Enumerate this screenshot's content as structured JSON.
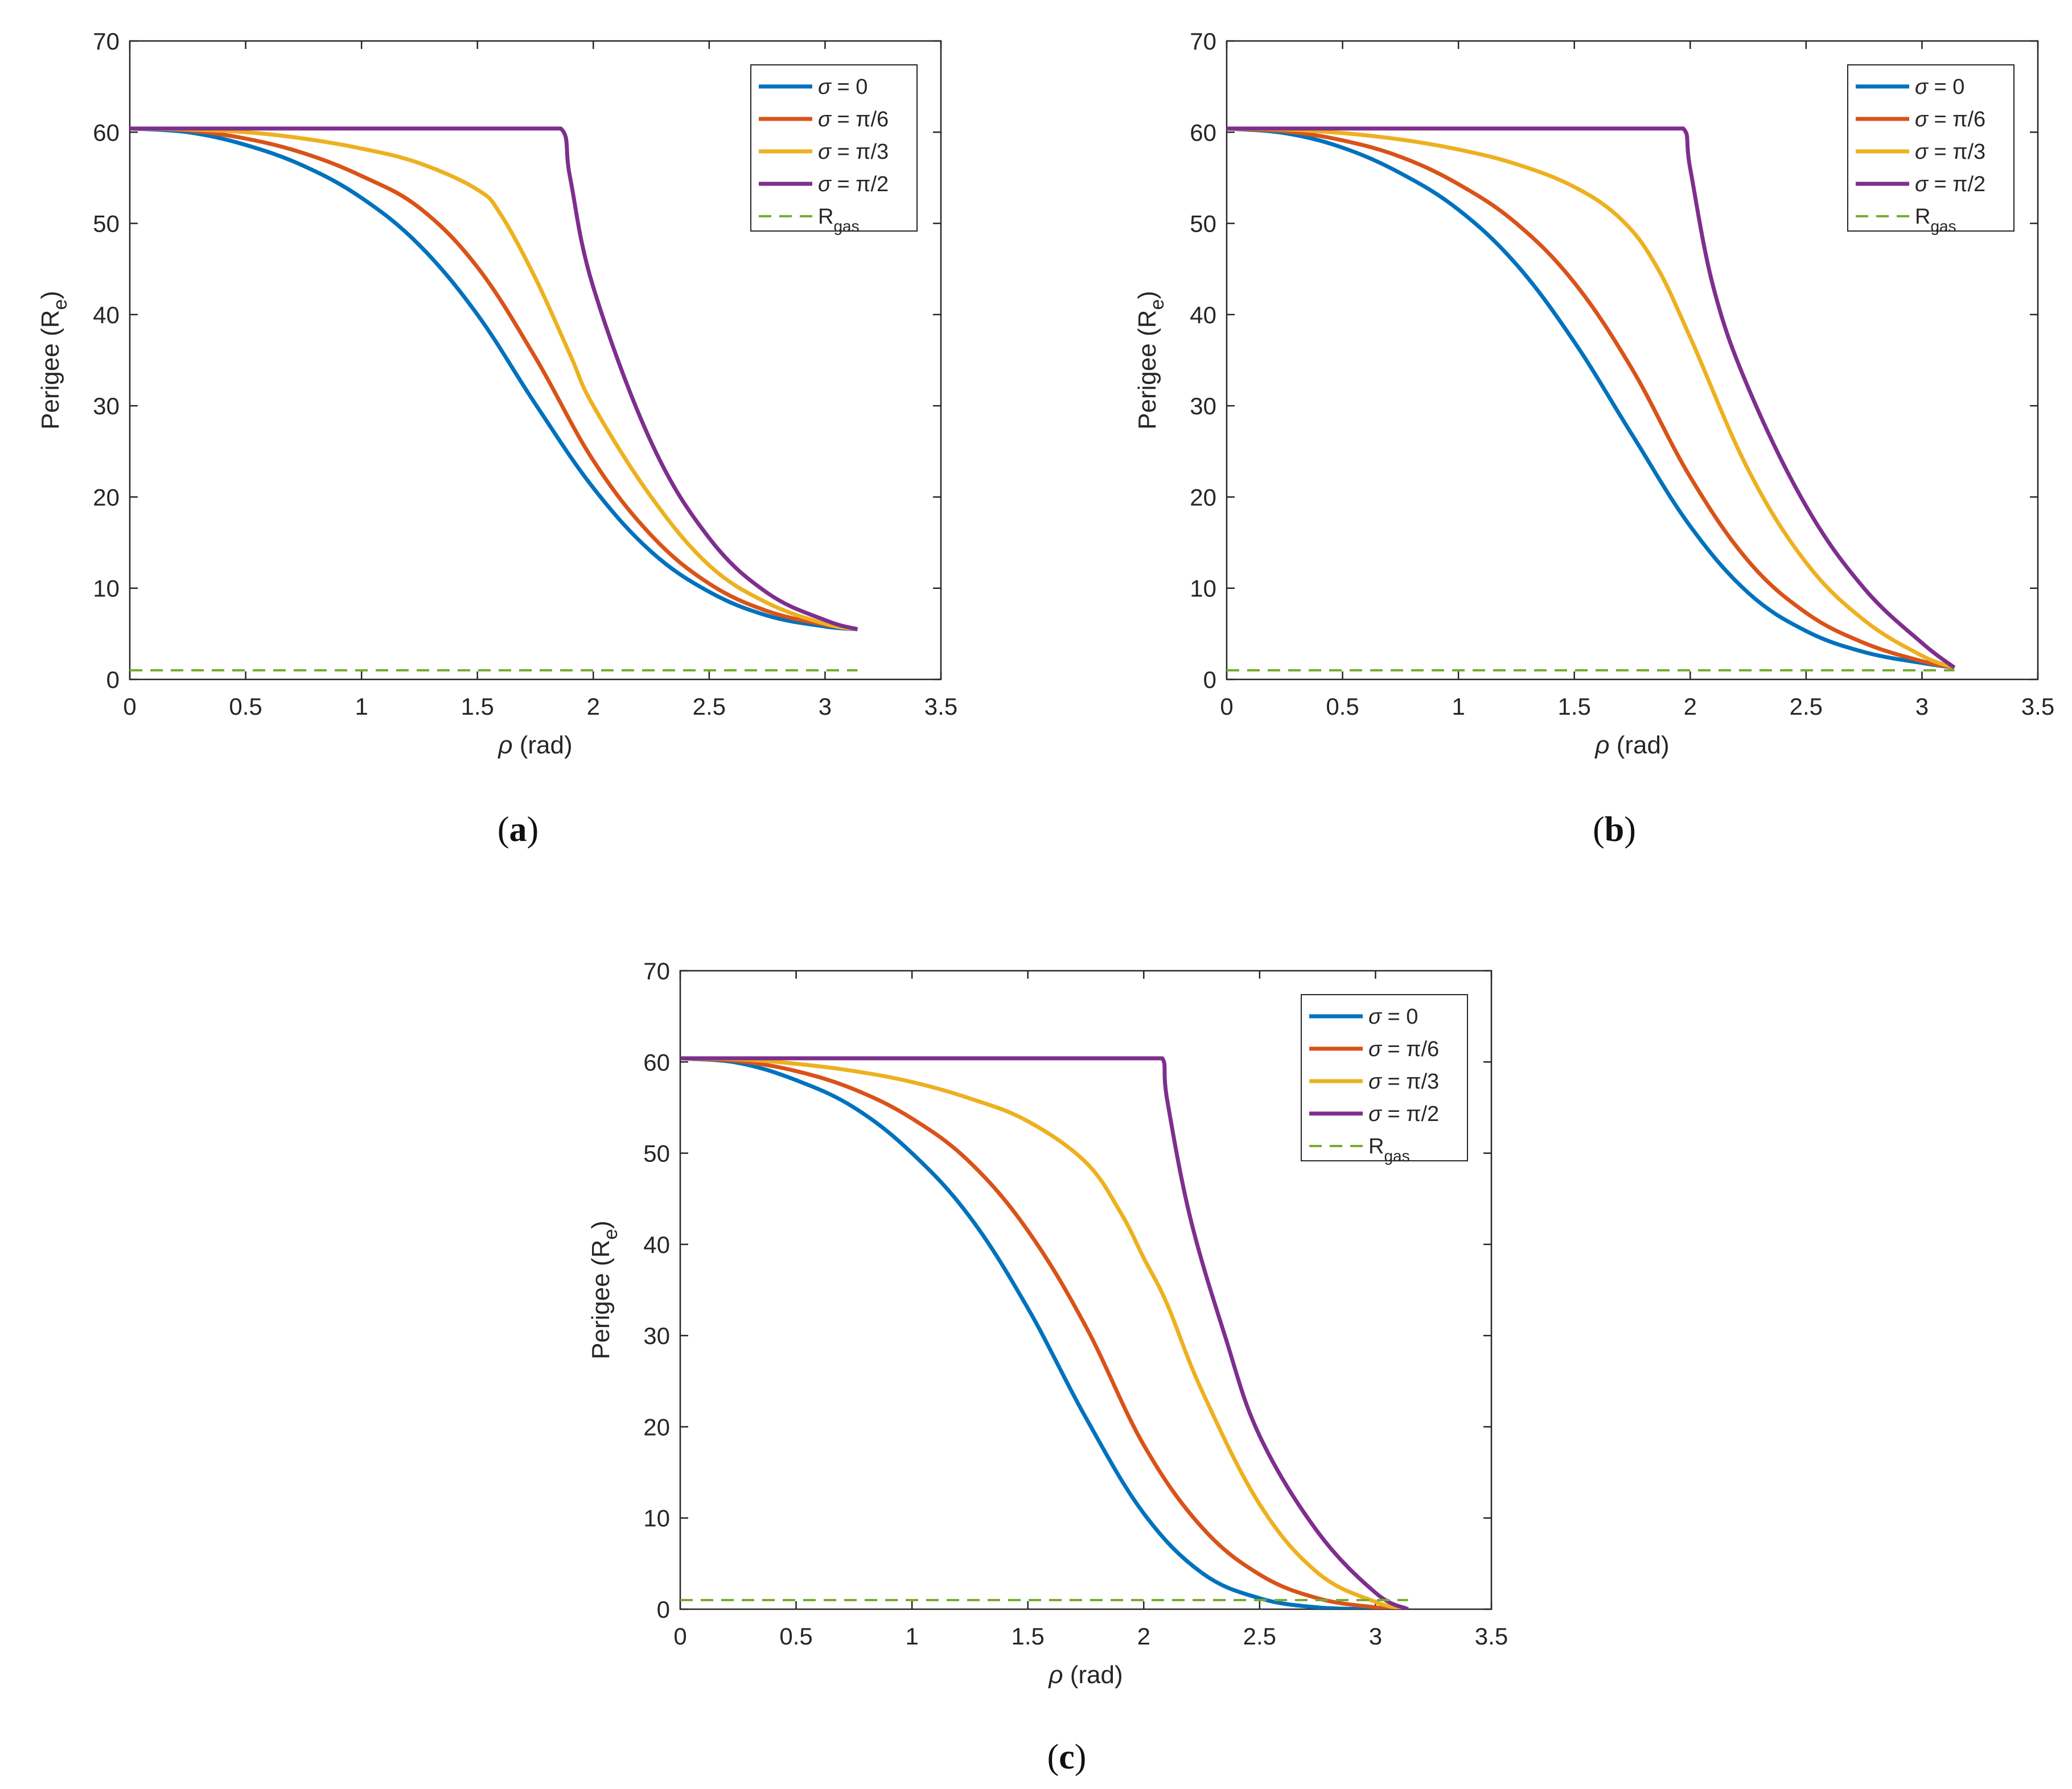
{
  "chart_data": [
    {
      "panel_label": "a",
      "type": "line",
      "title": "",
      "xlabel": "ρ (rad)",
      "ylabel": "Perigee (R_e)",
      "xlim": [
        0,
        3.5
      ],
      "ylim": [
        0,
        70
      ],
      "xticks": [
        "0",
        "0.5",
        "1",
        "1.5",
        "2",
        "2.5",
        "3",
        "3.5"
      ],
      "yticks": [
        "0",
        "10",
        "20",
        "30",
        "40",
        "50",
        "60",
        "70"
      ],
      "grid": false,
      "legend_position": "top-right",
      "series": [
        {
          "name": "σ = 0",
          "color": "#0072BD",
          "x": [
            0,
            0.25,
            0.5,
            0.75,
            1.0,
            1.25,
            1.5,
            1.75,
            2.0,
            2.25,
            2.5,
            2.75,
            3.0,
            3.14
          ],
          "y": [
            60.4,
            60.0,
            58.6,
            56.3,
            52.8,
            47.6,
            40.0,
            30.2,
            21.0,
            14.0,
            9.6,
            7.0,
            5.8,
            5.5
          ]
        },
        {
          "name": "σ = π/6",
          "color": "#D95319",
          "x": [
            0,
            0.25,
            0.5,
            0.75,
            1.0,
            1.25,
            1.5,
            1.75,
            2.0,
            2.25,
            2.5,
            2.75,
            3.0,
            3.14
          ],
          "y": [
            60.4,
            60.2,
            59.3,
            57.7,
            55.2,
            51.7,
            45.2,
            35.3,
            24.0,
            15.8,
            10.5,
            7.5,
            6.0,
            5.5
          ]
        },
        {
          "name": "σ = π/3",
          "color": "#EDB120",
          "x": [
            0,
            0.25,
            0.5,
            0.75,
            1.0,
            1.25,
            1.5,
            1.6,
            1.75,
            1.9,
            2.0,
            2.25,
            2.5,
            2.75,
            3.0,
            3.14
          ],
          "y": [
            60.4,
            60.3,
            60.0,
            59.3,
            58.2,
            56.6,
            53.7,
            51.0,
            44.0,
            35.6,
            30.0,
            20.0,
            12.5,
            8.4,
            6.1,
            5.5
          ]
        },
        {
          "name": "σ = π/2",
          "color": "#7E2F8E",
          "x": [
            0,
            1.86,
            1.9,
            2.0,
            2.25,
            2.5,
            2.75,
            3.0,
            3.14
          ],
          "y": [
            60.4,
            60.4,
            55.0,
            43.0,
            26.0,
            15.5,
            9.5,
            6.5,
            5.5
          ]
        },
        {
          "name": "R_gas",
          "color": "#77AC30",
          "dashed": true,
          "x": [
            0,
            3.14
          ],
          "y": [
            1.0,
            1.0
          ]
        }
      ]
    },
    {
      "panel_label": "b",
      "type": "line",
      "title": "",
      "xlabel": "ρ (rad)",
      "ylabel": "Perigee (R_e)",
      "xlim": [
        0,
        3.5
      ],
      "ylim": [
        0,
        70
      ],
      "xticks": [
        "0",
        "0.5",
        "1",
        "1.5",
        "2",
        "2.5",
        "3",
        "3.5"
      ],
      "yticks": [
        "0",
        "10",
        "20",
        "30",
        "40",
        "50",
        "60",
        "70"
      ],
      "grid": false,
      "legend_position": "top-right",
      "series": [
        {
          "name": "σ = 0",
          "color": "#0072BD",
          "x": [
            0,
            0.25,
            0.5,
            0.75,
            1.0,
            1.25,
            1.5,
            1.75,
            2.0,
            2.25,
            2.5,
            2.75,
            3.0,
            3.14
          ],
          "y": [
            60.4,
            59.9,
            58.3,
            55.5,
            51.5,
            45.5,
            37.0,
            26.8,
            16.8,
            9.5,
            5.3,
            3.0,
            1.8,
            1.3
          ]
        },
        {
          "name": "σ = π/6",
          "color": "#D95319",
          "x": [
            0,
            0.25,
            0.5,
            0.75,
            1.0,
            1.25,
            1.5,
            1.75,
            2.0,
            2.25,
            2.5,
            2.75,
            3.0,
            3.14
          ],
          "y": [
            60.4,
            60.1,
            59.1,
            57.3,
            54.3,
            50.0,
            43.5,
            34.0,
            22.2,
            13.0,
            7.3,
            4.0,
            2.0,
            1.3
          ]
        },
        {
          "name": "σ = π/3",
          "color": "#EDB120",
          "x": [
            0,
            0.25,
            0.5,
            0.75,
            1.0,
            1.25,
            1.5,
            1.7,
            1.85,
            2.0,
            2.25,
            2.5,
            2.75,
            3.0,
            3.14
          ],
          "y": [
            60.4,
            60.3,
            59.9,
            59.2,
            58.1,
            56.5,
            54.0,
            50.5,
            45.5,
            37.5,
            23.0,
            12.8,
            6.5,
            2.6,
            1.3
          ]
        },
        {
          "name": "σ = π/2",
          "color": "#7E2F8E",
          "x": [
            0,
            1.97,
            2.0,
            2.1,
            2.25,
            2.5,
            2.75,
            3.0,
            3.14
          ],
          "y": [
            60.4,
            60.4,
            56.0,
            43.0,
            32.0,
            19.0,
            10.0,
            4.0,
            1.3
          ]
        },
        {
          "name": "R_gas",
          "color": "#77AC30",
          "dashed": true,
          "x": [
            0,
            3.14
          ],
          "y": [
            1.0,
            1.0
          ]
        }
      ]
    },
    {
      "panel_label": "c",
      "type": "line",
      "title": "",
      "xlabel": "ρ (rad)",
      "ylabel": "Perigee (R_e)",
      "xlim": [
        0,
        3.5
      ],
      "ylim": [
        0,
        70
      ],
      "xticks": [
        "0",
        "0.5",
        "1",
        "1.5",
        "2",
        "2.5",
        "3",
        "3.5"
      ],
      "yticks": [
        "0",
        "10",
        "20",
        "30",
        "40",
        "50",
        "60",
        "70"
      ],
      "grid": false,
      "legend_position": "top-right",
      "series": [
        {
          "name": "σ = 0",
          "color": "#0072BD",
          "x": [
            0,
            0.25,
            0.5,
            0.75,
            1.0,
            1.25,
            1.5,
            1.75,
            2.0,
            2.25,
            2.5,
            2.75,
            3.0,
            3.14
          ],
          "y": [
            60.4,
            59.9,
            58.0,
            55.0,
            50.0,
            43.0,
            33.0,
            21.0,
            10.5,
            4.0,
            1.2,
            0.2,
            0.0,
            0.0
          ]
        },
        {
          "name": "σ = π/6",
          "color": "#D95319",
          "x": [
            0,
            0.25,
            0.5,
            0.75,
            1.0,
            1.25,
            1.5,
            1.75,
            2.0,
            2.25,
            2.5,
            2.75,
            3.0,
            3.14
          ],
          "y": [
            60.4,
            60.1,
            59.0,
            57.0,
            53.8,
            49.0,
            41.5,
            31.0,
            18.0,
            9.0,
            3.8,
            1.2,
            0.2,
            0.0
          ]
        },
        {
          "name": "σ = π/3",
          "color": "#EDB120",
          "x": [
            0,
            0.25,
            0.5,
            0.75,
            1.0,
            1.25,
            1.5,
            1.75,
            1.9,
            2.0,
            2.1,
            2.25,
            2.5,
            2.75,
            3.0,
            3.14
          ],
          "y": [
            60.4,
            60.3,
            59.8,
            59.0,
            57.8,
            56.0,
            53.5,
            49.0,
            43.5,
            38.5,
            33.5,
            24.0,
            11.5,
            4.0,
            0.8,
            0.0
          ]
        },
        {
          "name": "σ = π/2",
          "color": "#7E2F8E",
          "x": [
            0,
            2.08,
            2.1,
            2.2,
            2.35,
            2.5,
            2.75,
            3.0,
            3.14
          ],
          "y": [
            60.4,
            60.4,
            56.0,
            43.0,
            30.0,
            19.0,
            8.5,
            1.8,
            0.0
          ]
        },
        {
          "name": "R_gas",
          "color": "#77AC30",
          "dashed": true,
          "x": [
            0,
            3.14
          ],
          "y": [
            1.0,
            1.0
          ]
        }
      ]
    }
  ],
  "legend_entries": [
    {
      "greek": "σ",
      "value": " = 0"
    },
    {
      "greek": "σ",
      "value": " = π/6"
    },
    {
      "greek": "σ",
      "value": " = π/3"
    },
    {
      "greek": "σ",
      "value": " = π/2"
    },
    {
      "base": "R",
      "subscript": "gas"
    }
  ],
  "axis_text": {
    "xlabel_symbol": "ρ",
    "xlabel_unit": " (rad)",
    "ylabel_main": "Perigee (R",
    "ylabel_sub": "e",
    "ylabel_close": ")"
  }
}
